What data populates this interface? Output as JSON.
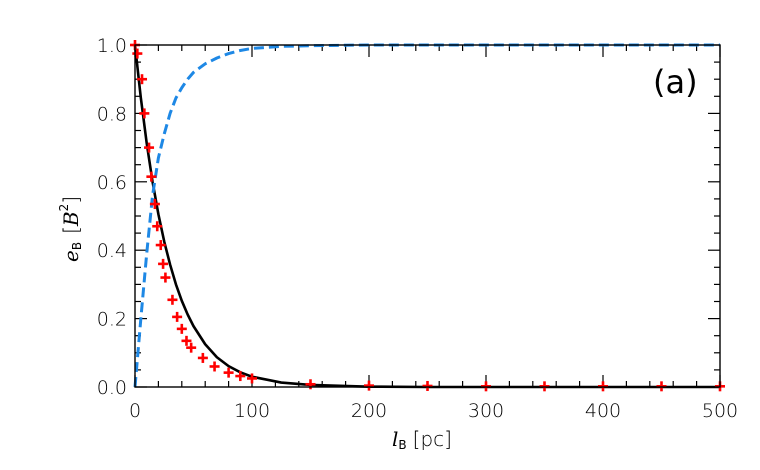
{
  "chart_data": {
    "type": "line",
    "panel_label": "(a)",
    "xlabel": {
      "symbol": "l",
      "subscript": "B",
      "unit": "[pc]"
    },
    "ylabel": {
      "symbol": "e",
      "subscript": "B",
      "unit_open": "[",
      "unit_symbol": "B",
      "unit_power": "2",
      "unit_close": "]"
    },
    "xlim": [
      0,
      500
    ],
    "ylim": [
      0,
      1.0
    ],
    "x_ticks": [
      "0",
      "100",
      "200",
      "300",
      "400",
      "500"
    ],
    "y_ticks": [
      "0.0",
      "0.2",
      "0.4",
      "0.6",
      "0.8",
      "1.0"
    ],
    "grid": false,
    "series": [
      {
        "style": "solid",
        "color": "#000000",
        "x": [
          0,
          5,
          10,
          15,
          20,
          25,
          30,
          35,
          40,
          45,
          50,
          60,
          70,
          80,
          90,
          100,
          125,
          150,
          200,
          250,
          300,
          350,
          400,
          450,
          500
        ],
        "y": [
          1.0,
          0.845,
          0.713,
          0.6,
          0.505,
          0.425,
          0.358,
          0.3,
          0.252,
          0.212,
          0.178,
          0.125,
          0.087,
          0.061,
          0.043,
          0.03,
          0.013,
          0.006,
          0.001,
          0.0,
          0.0,
          0.0,
          0.0,
          0.0,
          0.0
        ]
      },
      {
        "style": "dashed",
        "color": "#1e88e5",
        "x": [
          0,
          5,
          10,
          15,
          20,
          25,
          30,
          35,
          40,
          45,
          50,
          60,
          70,
          80,
          90,
          100,
          125,
          150,
          200,
          250,
          300,
          350,
          400,
          450,
          500
        ],
        "y": [
          0.0,
          0.2,
          0.39,
          0.56,
          0.67,
          0.74,
          0.8,
          0.845,
          0.875,
          0.9,
          0.92,
          0.945,
          0.962,
          0.975,
          0.984,
          0.99,
          0.996,
          0.998,
          1.0,
          1.0,
          1.0,
          1.0,
          1.0,
          1.0,
          1.0
        ]
      },
      {
        "style": "markers",
        "marker": "+",
        "color": "#ff0000",
        "x": [
          0,
          2,
          6,
          8,
          12,
          14,
          17,
          19,
          22,
          24,
          26,
          32,
          36,
          40,
          44,
          48,
          58,
          68,
          80,
          90,
          100,
          150,
          200,
          250,
          300,
          350,
          400,
          450,
          500
        ],
        "y": [
          1.0,
          0.975,
          0.9,
          0.8,
          0.7,
          0.615,
          0.535,
          0.47,
          0.415,
          0.36,
          0.32,
          0.255,
          0.205,
          0.17,
          0.135,
          0.115,
          0.085,
          0.06,
          0.042,
          0.032,
          0.025,
          0.008,
          0.004,
          0.003,
          0.002,
          0.002,
          0.002,
          0.002,
          0.002
        ]
      }
    ]
  }
}
